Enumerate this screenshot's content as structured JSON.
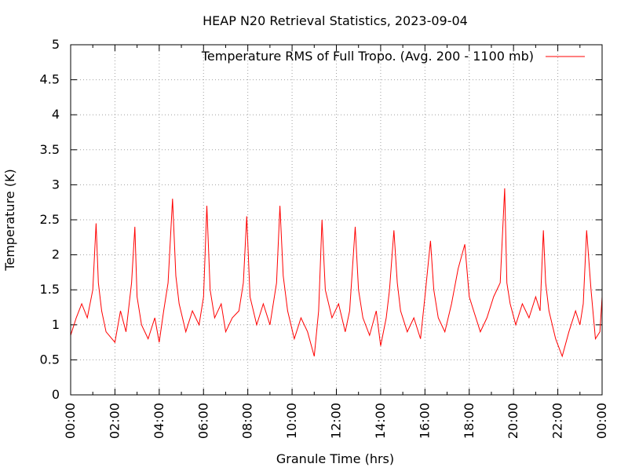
{
  "chart_data": {
    "type": "line",
    "title": "HEAP N20 Retrieval Statistics, 2023-09-04",
    "xlabel": "Granule Time (hrs)",
    "ylabel": "Temperature (K)",
    "xlim": [
      0,
      24
    ],
    "ylim": [
      0,
      5
    ],
    "x_ticks": [
      0,
      2,
      4,
      6,
      8,
      10,
      12,
      14,
      16,
      18,
      20,
      22,
      24
    ],
    "x_tick_labels": [
      "00:00",
      "02:00",
      "04:00",
      "06:00",
      "08:00",
      "10:00",
      "12:00",
      "14:00",
      "16:00",
      "18:00",
      "20:00",
      "22:00",
      "00:00"
    ],
    "y_ticks": [
      0,
      0.5,
      1,
      1.5,
      2,
      2.5,
      3,
      3.5,
      4,
      4.5,
      5
    ],
    "y_tick_labels": [
      "0",
      "0.5",
      "1",
      "1.5",
      "2",
      "2.5",
      "3",
      "3.5",
      "4",
      "4.5",
      "5"
    ],
    "grid": true,
    "legend_position": "top-right",
    "colors": {
      "series": "#ff0000",
      "grid": "#a0a0a0",
      "axis": "#000000"
    },
    "series": [
      {
        "name": "Temperature RMS of Full Tropo. (Avg. 200 - 1100 mb)",
        "x": [
          0,
          0.25,
          0.5,
          0.75,
          1,
          1.15,
          1.25,
          1.4,
          1.6,
          2,
          2.25,
          2.5,
          2.75,
          2.9,
          3,
          3.2,
          3.5,
          3.8,
          4,
          4.2,
          4.4,
          4.6,
          4.75,
          4.9,
          5.2,
          5.5,
          5.8,
          6,
          6.15,
          6.3,
          6.5,
          6.8,
          7,
          7.3,
          7.6,
          7.8,
          7.95,
          8.1,
          8.4,
          8.7,
          9,
          9.3,
          9.45,
          9.6,
          9.8,
          10.1,
          10.4,
          10.7,
          11,
          11.2,
          11.35,
          11.5,
          11.8,
          12.1,
          12.4,
          12.6,
          12.85,
          13,
          13.2,
          13.5,
          13.8,
          14,
          14.25,
          14.4,
          14.6,
          14.75,
          14.9,
          15.2,
          15.5,
          15.8,
          16,
          16.25,
          16.4,
          16.6,
          16.9,
          17.2,
          17.5,
          17.8,
          18,
          18.2,
          18.5,
          18.8,
          19.1,
          19.4,
          19.6,
          19.7,
          19.85,
          20.1,
          20.4,
          20.7,
          21,
          21.2,
          21.35,
          21.45,
          21.6,
          21.9,
          22.2,
          22.5,
          22.8,
          23,
          23.15,
          23.3,
          23.5,
          23.7,
          23.9,
          24
        ],
        "y": [
          0.85,
          1.1,
          1.3,
          1.1,
          1.5,
          2.45,
          1.6,
          1.2,
          0.9,
          0.75,
          1.2,
          0.9,
          1.6,
          2.4,
          1.4,
          1.0,
          0.8,
          1.1,
          0.75,
          1.2,
          1.6,
          2.8,
          1.7,
          1.3,
          0.9,
          1.2,
          1.0,
          1.4,
          2.7,
          1.5,
          1.1,
          1.3,
          0.9,
          1.1,
          1.2,
          1.6,
          2.55,
          1.4,
          1.0,
          1.3,
          1.0,
          1.6,
          2.7,
          1.7,
          1.2,
          0.8,
          1.1,
          0.9,
          0.55,
          1.2,
          2.5,
          1.5,
          1.1,
          1.3,
          0.9,
          1.2,
          2.4,
          1.5,
          1.1,
          0.85,
          1.2,
          0.7,
          1.1,
          1.5,
          2.35,
          1.6,
          1.2,
          0.9,
          1.1,
          0.8,
          1.4,
          2.2,
          1.5,
          1.1,
          0.9,
          1.3,
          1.8,
          2.15,
          1.4,
          1.2,
          0.9,
          1.1,
          1.4,
          1.6,
          2.95,
          1.6,
          1.3,
          1.0,
          1.3,
          1.1,
          1.4,
          1.2,
          2.35,
          1.6,
          1.2,
          0.8,
          0.55,
          0.9,
          1.2,
          1.0,
          1.3,
          2.35,
          1.5,
          0.8,
          0.9,
          1.4
        ]
      }
    ]
  }
}
